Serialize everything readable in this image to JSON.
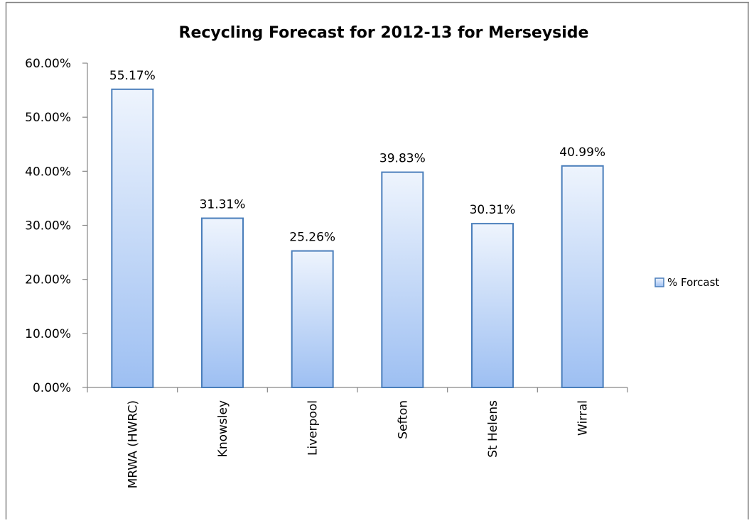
{
  "chart_data": {
    "type": "bar",
    "title": "Recycling Forecast for 2012-13 for Merseyside",
    "categories": [
      "MRWA (HWRC)",
      "Knowsley",
      "Liverpool",
      "Sefton",
      "St Helens",
      "Wirral"
    ],
    "series": [
      {
        "name": "% Forcast",
        "values": [
          55.17,
          31.31,
          25.26,
          39.83,
          30.31,
          40.99
        ]
      }
    ],
    "data_labels": [
      "55.17%",
      "31.31%",
      "25.26%",
      "39.83%",
      "30.31%",
      "40.99%"
    ],
    "y_ticks": [
      "0.00%",
      "10.00%",
      "20.00%",
      "30.00%",
      "40.00%",
      "50.00%",
      "60.00%"
    ],
    "ylim": [
      0,
      60
    ],
    "xlabel": "",
    "ylabel": "",
    "grid": false,
    "legend_position": "right",
    "colors": {
      "bar_top": "#eef4fd",
      "bar_bottom": "#9dbff2",
      "bar_border": "#4a7ebb",
      "axis": "#868686",
      "frame": "#848484"
    }
  }
}
